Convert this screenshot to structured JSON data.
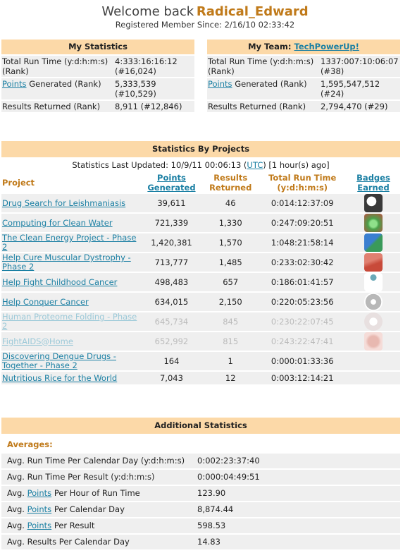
{
  "header": {
    "welcome": "Welcome back",
    "username": "Radical_Edward",
    "registered": "Registered Member Since: 2/16/10 02:33:42"
  },
  "my_statistics": {
    "title": "My Statistics",
    "run_time_label": "Total Run Time (y:d:h:m:s) (Rank)",
    "run_time_value": "4:333:16:16:12 (#16,024)",
    "points_link": "Points",
    "points_label_rest": " Generated (Rank)",
    "points_value": "5,333,539 (#10,529)",
    "results_label": "Results Returned (Rank)",
    "results_value": "8,911 (#12,846)"
  },
  "my_team": {
    "title_prefix": "My Team:",
    "team_name": "TechPowerUp!",
    "run_time_label": "Total Run Time (y:d:h:m:s) (Rank)",
    "run_time_value": "1337:007:10:06:07 (#38)",
    "points_link": "Points",
    "points_label_rest": " Generated (Rank)",
    "points_value": "1,595,547,512 (#24)",
    "results_label": "Results Returned (Rank)",
    "results_value": "2,794,470 (#29)"
  },
  "projects": {
    "title": "Statistics By Projects",
    "updated_prefix": "Statistics Last Updated: 10/9/11 00:06:13 (",
    "updated_utc": "UTC",
    "updated_suffix": ") [1 hour(s) ago]",
    "columns": {
      "project": "Project",
      "points_1": "Points",
      "points_2": "Generated",
      "results_1": "Results",
      "results_2": "Returned",
      "runtime_1": "Total Run Time",
      "runtime_2": "(y:d:h:m:s)",
      "badges_1": "Badges",
      "badges_2": "Earned"
    },
    "rows": [
      {
        "name": "Drug Search for Leishmaniasis",
        "points": "39,611",
        "results": "46",
        "runtime": "0:014:12:37:09"
      },
      {
        "name": "Computing for Clean Water",
        "points": "721,339",
        "results": "1,330",
        "runtime": "0:247:09:20:51"
      },
      {
        "name": "The Clean Energy Project - Phase 2",
        "points": "1,420,381",
        "results": "1,570",
        "runtime": "1:048:21:58:14"
      },
      {
        "name": "Help Cure Muscular Dystrophy - Phase 2",
        "points": "713,777",
        "results": "1,485",
        "runtime": "0:233:02:30:42"
      },
      {
        "name": "Help Fight Childhood Cancer",
        "points": "498,483",
        "results": "657",
        "runtime": "0:186:01:41:57"
      },
      {
        "name": "Help Conquer Cancer",
        "points": "634,015",
        "results": "2,150",
        "runtime": "0:220:05:23:56"
      },
      {
        "name": "Human Proteome Folding - Phase 2",
        "points": "645,734",
        "results": "845",
        "runtime": "0:230:22:07:45"
      },
      {
        "name": "FightAIDS@Home",
        "points": "652,992",
        "results": "815",
        "runtime": "0:243:22:47:41"
      },
      {
        "name": "Discovering Dengue Drugs - Together - Phase 2",
        "points": "164",
        "results": "1",
        "runtime": "0:000:01:33:36"
      },
      {
        "name": "Nutritious Rice for the World",
        "points": "7,043",
        "results": "12",
        "runtime": "0:003:12:14:21"
      }
    ],
    "badge_colors": [
      "#3a3a3a",
      "#4aa04a",
      "#3b7fd0",
      "#c84a3a",
      "#6aa9b8",
      "#b8b8b8",
      "#e8e0e0",
      "#e8b8b0"
    ]
  },
  "additional": {
    "title": "Additional Statistics",
    "averages_label": "Averages:",
    "points_link": "Points",
    "rows": {
      "r0_label": "Avg. Run Time Per Calendar Day (y:d:h:m:s)",
      "r0_value": "0:002:23:37:40",
      "r1_label": "Avg. Run Time Per Result (y:d:h:m:s)",
      "r1_value": "0:000:04:49:51",
      "r2_pre": "Avg. ",
      "r2_post": " Per Hour of Run Time",
      "r2_value": "123.90",
      "r3_pre": "Avg. ",
      "r3_post": " Per Calendar Day",
      "r3_value": "8,874.44",
      "r4_pre": "Avg. ",
      "r4_post": " Per Result",
      "r4_value": "598.53",
      "r5_label": "Avg. Results Per Calendar Day",
      "r5_value": "14.83"
    }
  }
}
